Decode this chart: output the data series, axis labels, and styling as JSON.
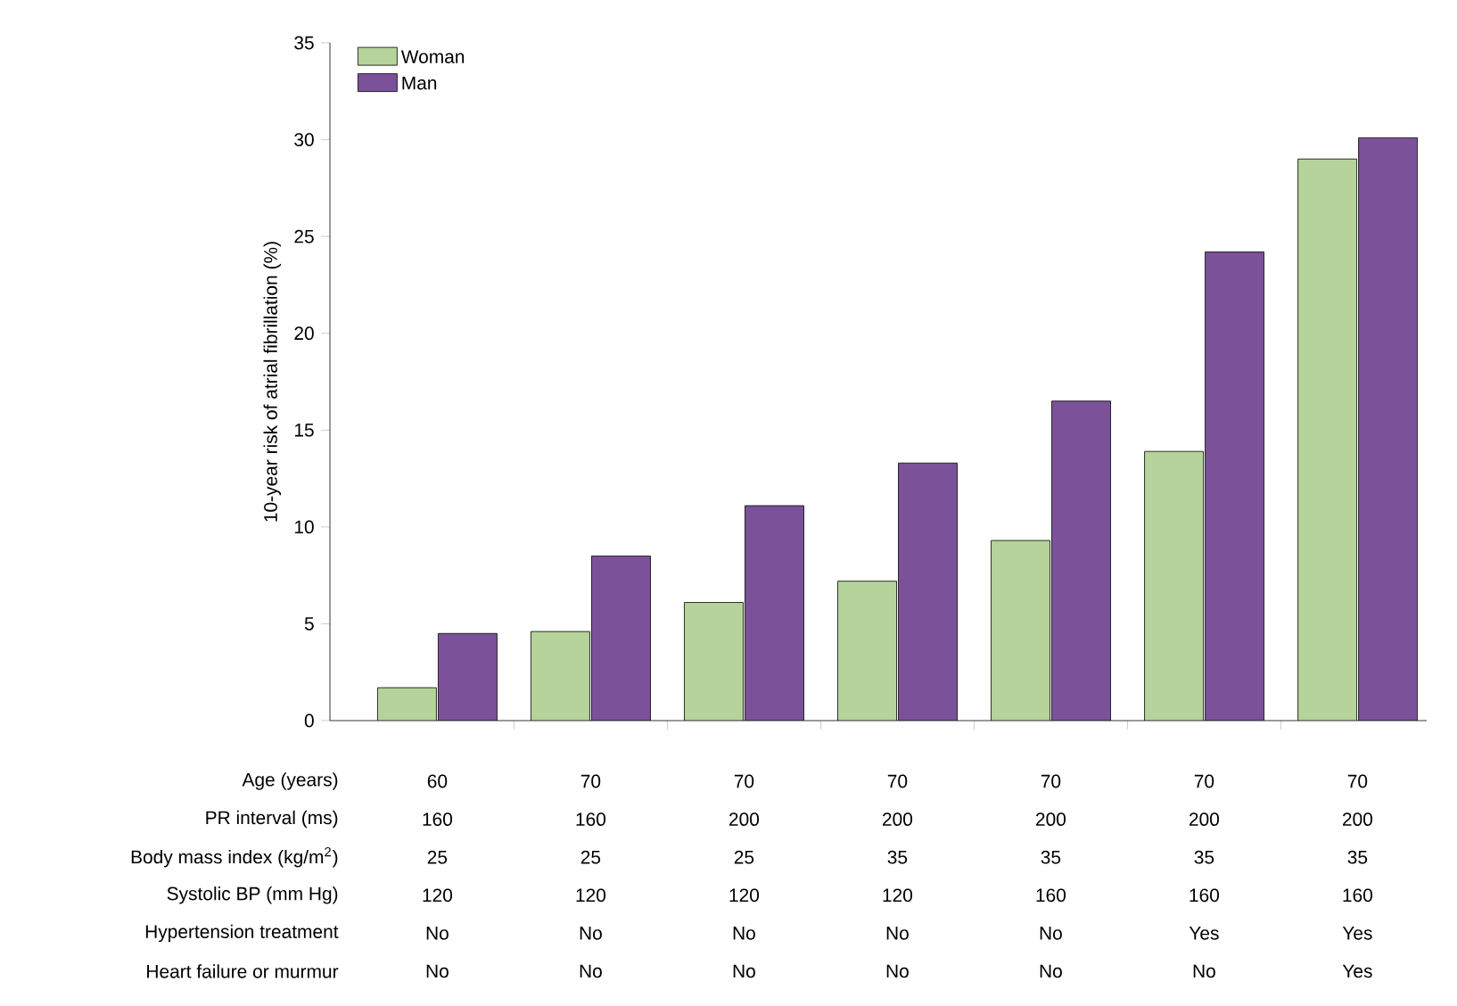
{
  "chart_data": {
    "type": "bar",
    "ylabel": "10-year risk of atrial fibrillation (%)",
    "categories": [
      null,
      null,
      null,
      null,
      null,
      null,
      null
    ],
    "series": [
      {
        "name": "Woman",
        "color": "#b5d39b",
        "values": [
          1.7,
          4.6,
          6.1,
          7.2,
          9.3,
          13.9,
          29.0
        ]
      },
      {
        "name": "Man",
        "color": "#7b5299",
        "values": [
          4.5,
          8.5,
          11.1,
          13.3,
          16.5,
          24.2,
          30.1
        ]
      }
    ],
    "ylim": [
      0,
      35
    ],
    "yticks": [
      0,
      5,
      10,
      15,
      20,
      25,
      30,
      35
    ],
    "grid": false,
    "legend": "top left",
    "annotations": [
      "Age (years)",
      "60",
      "70",
      "70",
      "70",
      "70",
      "70",
      "70",
      "PR interval (ms)",
      "160",
      "160",
      "200",
      "200",
      "200",
      "200",
      "200",
      "Body mass index (kg/m$^{2}$)",
      "25",
      "25",
      "25",
      "35",
      "35",
      "35",
      "35",
      "Systolic BP (mm Hg)",
      "120",
      "120",
      "120",
      "120",
      "160",
      "160",
      "160",
      "Hypertension treatment",
      "No",
      "No",
      "No",
      "No",
      "No",
      "Yes",
      "Yes",
      "Heart failure or murmur",
      "No",
      "No",
      "No",
      "No",
      "No",
      "No",
      "Yes"
    ]
  }
}
